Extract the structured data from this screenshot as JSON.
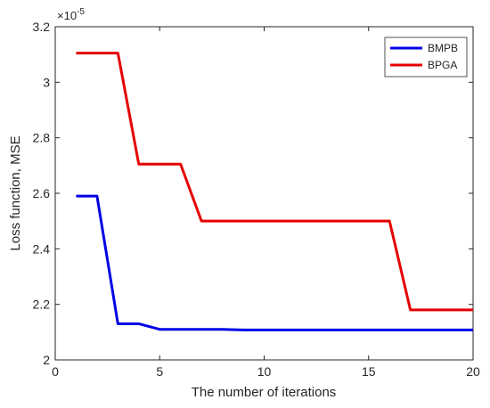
{
  "chart_data": {
    "type": "line",
    "xlabel": "The number of iterations",
    "ylabel": "Loss function, MSE",
    "xlim": [
      0,
      20
    ],
    "ylim": [
      2.0,
      3.2
    ],
    "x_ticks": [
      "0",
      "5",
      "10",
      "15",
      "20"
    ],
    "y_ticks": [
      "2",
      "2.2",
      "2.4",
      "2.6",
      "2.8",
      "3",
      "3.2"
    ],
    "y_multiplier_base": "×10",
    "y_multiplier_exp": "-5",
    "grid": false,
    "legend_position": "top-right",
    "series": [
      {
        "name": "BMPB",
        "color": "#0000e6",
        "x": [
          1,
          2,
          3,
          4,
          5,
          6,
          7,
          8,
          9,
          10,
          11,
          12,
          13,
          14,
          15,
          16,
          17,
          18,
          19,
          20
        ],
        "y": [
          2.59,
          2.59,
          2.13,
          2.13,
          2.11,
          2.11,
          2.11,
          2.11,
          2.108,
          2.108,
          2.108,
          2.108,
          2.108,
          2.108,
          2.108,
          2.108,
          2.108,
          2.108,
          2.108,
          2.108
        ]
      },
      {
        "name": "BPGA",
        "color": "#e60000",
        "x": [
          1,
          2,
          3,
          4,
          5,
          6,
          7,
          8,
          9,
          10,
          11,
          12,
          13,
          14,
          15,
          16,
          17,
          18,
          19,
          20
        ],
        "y": [
          3.105,
          3.105,
          3.105,
          2.705,
          2.705,
          2.705,
          2.5,
          2.5,
          2.5,
          2.5,
          2.5,
          2.5,
          2.5,
          2.5,
          2.5,
          2.5,
          2.18,
          2.18,
          2.18,
          2.18
        ]
      }
    ]
  }
}
